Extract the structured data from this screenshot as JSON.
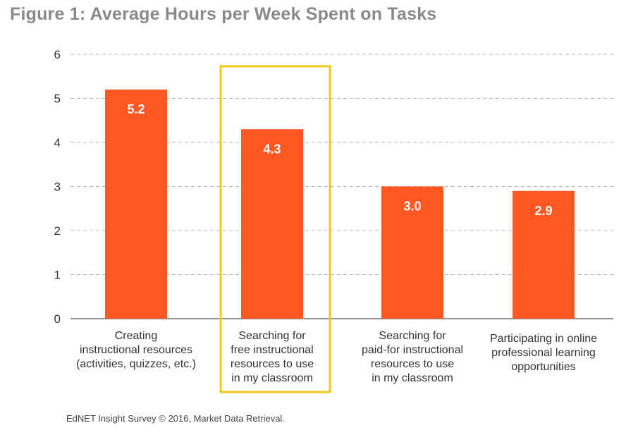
{
  "chart_data": {
    "type": "bar",
    "title": "Figure 1: Average Hours per Week Spent on Tasks",
    "categories": [
      [
        "Creating",
        "instructional resources",
        "(activities, quizzes, etc.)"
      ],
      [
        "Searching for",
        "free instructional",
        "resources to use",
        "in my classroom"
      ],
      [
        "Searching for",
        "paid-for instructional",
        "resources to use",
        "in my classroom"
      ],
      [
        "Participating in online",
        "professional learning",
        "opportunities"
      ]
    ],
    "values": [
      5.2,
      4.3,
      3.0,
      2.9
    ],
    "data_labels": [
      "5.2",
      "4.3",
      "3.0",
      "2.9"
    ],
    "ylim": [
      0,
      6
    ],
    "yticks": [
      "0",
      "1",
      "2",
      "3",
      "4",
      "5",
      "6"
    ],
    "highlighted_category_index": 1,
    "grid": true,
    "colors": {
      "bar": "#ff5722",
      "highlight_box": "#f2c81b",
      "grid": "#b5b5b5",
      "axis": "#555555",
      "title": "#8a8a8a",
      "label_text": "#333333",
      "data_label_text": "#ffffff"
    },
    "source": "EdNET Insight Survey © 2016, Market Data Retrieval."
  }
}
